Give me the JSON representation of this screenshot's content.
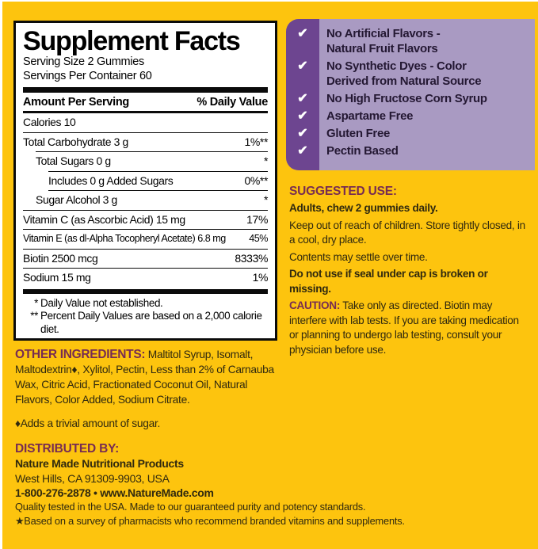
{
  "colors": {
    "background": "#FDC40E",
    "panel_purple_dark": "#6D4590",
    "panel_purple_light": "#A99AC2",
    "heading_plum": "#772C52",
    "table_black": "#000000"
  },
  "supplement_facts": {
    "title": "Supplement Facts",
    "serving_size": "Serving Size 2 Gummies",
    "servings_per_container": "Servings Per Container 60",
    "col_amount": "Amount Per Serving",
    "col_dv": "% Daily Value",
    "rows": [
      {
        "name": "Calories  10",
        "dv": ""
      },
      {
        "name": "Total Carbohydrate  3 g",
        "dv": "1%**"
      },
      {
        "name": "Total Sugars  0 g",
        "dv": "*"
      },
      {
        "name": "Includes 0 g Added Sugars",
        "dv": "0%**"
      },
      {
        "name": "Sugar Alcohol  3 g",
        "dv": "*"
      },
      {
        "name": "Vitamin C (as Ascorbic Acid)  15 mg",
        "dv": "17%"
      },
      {
        "name": "Vitamin E (as dl-Alpha Tocopheryl Acetate)  6.8 mg",
        "dv": "45%"
      },
      {
        "name": "Biotin  2500 mcg",
        "dv": "8333%"
      },
      {
        "name": "Sodium  15 mg",
        "dv": "1%"
      }
    ],
    "footnotes": [
      {
        "marker": "*",
        "text": "Daily Value not established."
      },
      {
        "marker": "**",
        "text": "Percent Daily Values are based on a 2,000 calorie diet."
      }
    ]
  },
  "checklist": {
    "check_glyph": "✔",
    "items": [
      {
        "line1": "No Artificial Flavors -",
        "line2": "Natural Fruit Flavors"
      },
      {
        "line1": "No Synthetic Dyes - Color",
        "line2": "Derived from Natural Source"
      },
      {
        "line1": "No High Fructose Corn Syrup"
      },
      {
        "line1": "Aspartame Free"
      },
      {
        "line1": "Gluten Free"
      },
      {
        "line1": "Pectin Based"
      }
    ]
  },
  "suggested_use": {
    "heading": "SUGGESTED USE:",
    "dose": "Adults, chew 2 gummies daily.",
    "storage": "Keep out of reach of children. Store tightly closed, in a cool, dry place.",
    "settle": "Contents may settle over time.",
    "seal": "Do not use if seal under cap is broken or missing."
  },
  "caution": {
    "heading": "CAUTION:",
    "text": "Take only as directed. Biotin may interfere with lab tests. If you are taking medication or planning to undergo lab testing, consult your physician before use."
  },
  "other_ingredients": {
    "heading": "OTHER INGREDIENTS:",
    "text": "Maltitol Syrup, Isomalt, Maltodextrin♦, Xylitol, Pectin, Less than 2% of Carnauba Wax, Citric Acid, Fractionated Coconut Oil, Natural Flavors, Color Added, Sodium Citrate.",
    "sugar_note": "♦Adds a trivial amount of sugar."
  },
  "distributor": {
    "heading": "DISTRIBUTED BY:",
    "name": "Nature Made Nutritional Products",
    "address": "West Hills, CA 91309-9903, USA",
    "contact": "1-800-276-2878 • www.NatureMade.com"
  },
  "footer": {
    "line1": "Quality tested in the USA. Made to our guaranteed purity and potency standards.",
    "line2": "★Based on a survey of pharmacists who recommend branded vitamins and supplements."
  }
}
